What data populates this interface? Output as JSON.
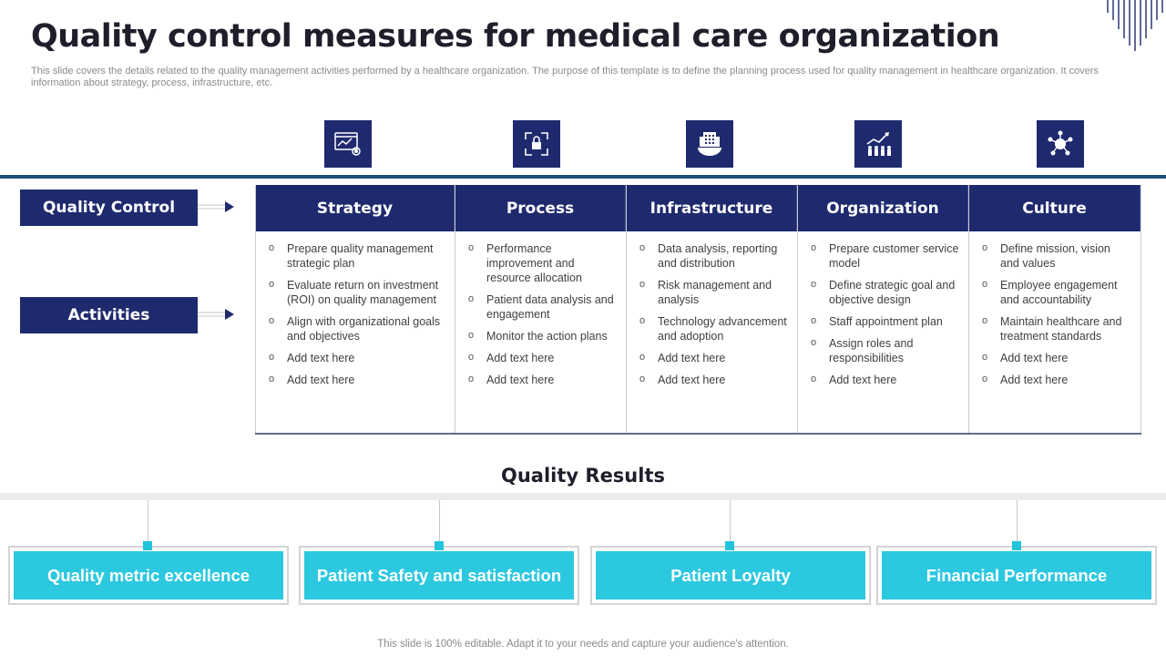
{
  "title": "Quality control measures for medical care organization",
  "subtitle": "This slide covers the details related to the quality management activities performed by a healthcare organization. The purpose of this template is to define the planning process used for quality management in healthcare organization. It covers information about strategy, process, infrastructure, etc.",
  "icons": [
    "analytics-settings-icon",
    "secure-process-cycle-icon",
    "global-building-icon",
    "organization-growth-icon",
    "team-culture-icon"
  ],
  "labels": {
    "quality_control": "Quality Control",
    "activities": "Activities"
  },
  "columns": [
    {
      "heading": "Strategy",
      "items": [
        "Prepare quality management strategic plan",
        "Evaluate return on investment (ROI) on quality management",
        "Align with organizational goals and objectives",
        "Add text here",
        "Add text here"
      ]
    },
    {
      "heading": "Process",
      "items": [
        "Performance improvement and resource allocation",
        "Patient data analysis and engagement",
        "Monitor the action plans",
        "Add text here",
        "Add text here"
      ]
    },
    {
      "heading": "Infrastructure",
      "items": [
        "Data analysis, reporting and distribution",
        "Risk management and analysis",
        "Technology advancement and adoption",
        "Add text here",
        "Add text here"
      ]
    },
    {
      "heading": "Organization",
      "items": [
        "Prepare customer service model",
        "Define strategic goal and objective design",
        "Staff appointment plan",
        "Assign roles and responsibilities",
        "Add text here"
      ]
    },
    {
      "heading": "Culture",
      "items": [
        "Define mission, vision and values",
        "Employee engagement and accountability",
        "Maintain healthcare and treatment standards",
        "Add text here",
        "Add text here"
      ]
    }
  ],
  "results_title": "Quality Results",
  "results": [
    "Quality metric excellence",
    "Patient Safety and satisfaction",
    "Patient Loyalty",
    "Financial Performance"
  ],
  "footer": "This slide is 100% editable. Adapt it to your needs and capture your audience's attention.",
  "colors": {
    "navy": "#1f2a6e",
    "cyan": "#2cc8e0",
    "rule": "#1f4e7a"
  }
}
